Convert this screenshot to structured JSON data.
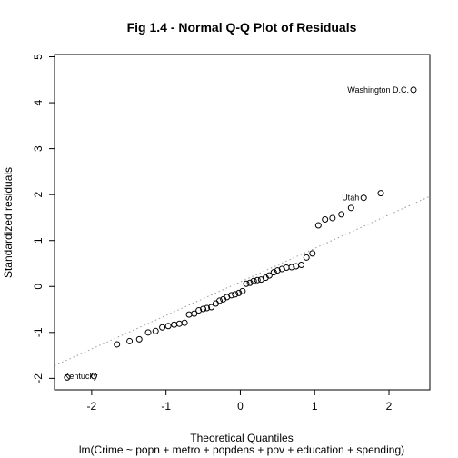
{
  "chart_data": {
    "type": "scatter",
    "title": "Fig 1.4 - Normal Q-Q Plot of Residuals",
    "xlabel": "Theoretical Quantiles",
    "caption": "lm(Crime ~ popn + metro + popdens + pov + education + spending)",
    "ylabel": "Standardized residuals",
    "xlim": [
      -2.5,
      2.55
    ],
    "ylim": [
      -2.25,
      5.05
    ],
    "xticks": [
      -2,
      -1,
      0,
      1,
      2
    ],
    "yticks": [
      -2,
      -1,
      0,
      1,
      2,
      3,
      4,
      5
    ],
    "grid": false,
    "reference_line": {
      "style": "dotted",
      "color": "#9a9a9a",
      "intercept": 0.1,
      "slope": 0.73
    },
    "points": [
      {
        "x": -2.33,
        "y": -1.98
      },
      {
        "x": -1.97,
        "y": -1.95
      },
      {
        "x": -1.66,
        "y": -1.26
      },
      {
        "x": -1.49,
        "y": -1.19
      },
      {
        "x": -1.36,
        "y": -1.15
      },
      {
        "x": -1.24,
        "y": -1.0
      },
      {
        "x": -1.14,
        "y": -0.97
      },
      {
        "x": -1.05,
        "y": -0.89
      },
      {
        "x": -0.97,
        "y": -0.86
      },
      {
        "x": -0.89,
        "y": -0.83
      },
      {
        "x": -0.82,
        "y": -0.81
      },
      {
        "x": -0.75,
        "y": -0.79
      },
      {
        "x": -0.69,
        "y": -0.61
      },
      {
        "x": -0.62,
        "y": -0.59
      },
      {
        "x": -0.56,
        "y": -0.52
      },
      {
        "x": -0.5,
        "y": -0.49
      },
      {
        "x": -0.45,
        "y": -0.47
      },
      {
        "x": -0.39,
        "y": -0.45
      },
      {
        "x": -0.33,
        "y": -0.37
      },
      {
        "x": -0.28,
        "y": -0.31
      },
      {
        "x": -0.23,
        "y": -0.28
      },
      {
        "x": -0.18,
        "y": -0.23
      },
      {
        "x": -0.12,
        "y": -0.19
      },
      {
        "x": -0.07,
        "y": -0.17
      },
      {
        "x": -0.02,
        "y": -0.14
      },
      {
        "x": 0.03,
        "y": -0.1
      },
      {
        "x": 0.08,
        "y": 0.06
      },
      {
        "x": 0.13,
        "y": 0.08
      },
      {
        "x": 0.18,
        "y": 0.12
      },
      {
        "x": 0.23,
        "y": 0.14
      },
      {
        "x": 0.28,
        "y": 0.15
      },
      {
        "x": 0.34,
        "y": 0.19
      },
      {
        "x": 0.39,
        "y": 0.24
      },
      {
        "x": 0.45,
        "y": 0.31
      },
      {
        "x": 0.5,
        "y": 0.35
      },
      {
        "x": 0.56,
        "y": 0.38
      },
      {
        "x": 0.62,
        "y": 0.41
      },
      {
        "x": 0.69,
        "y": 0.42
      },
      {
        "x": 0.75,
        "y": 0.44
      },
      {
        "x": 0.82,
        "y": 0.47
      },
      {
        "x": 0.89,
        "y": 0.63
      },
      {
        "x": 0.97,
        "y": 0.72
      },
      {
        "x": 1.05,
        "y": 1.33
      },
      {
        "x": 1.14,
        "y": 1.46
      },
      {
        "x": 1.24,
        "y": 1.49
      },
      {
        "x": 1.36,
        "y": 1.57
      },
      {
        "x": 1.49,
        "y": 1.71
      },
      {
        "x": 1.66,
        "y": 1.93,
        "label": "Utah"
      },
      {
        "x": 1.89,
        "y": 2.03
      },
      {
        "x": 2.33,
        "y": 4.28,
        "label": "Washington D.C."
      }
    ],
    "extra_labels": [
      {
        "label": "Kentucky",
        "x": -1.97,
        "y": -1.95
      }
    ]
  }
}
